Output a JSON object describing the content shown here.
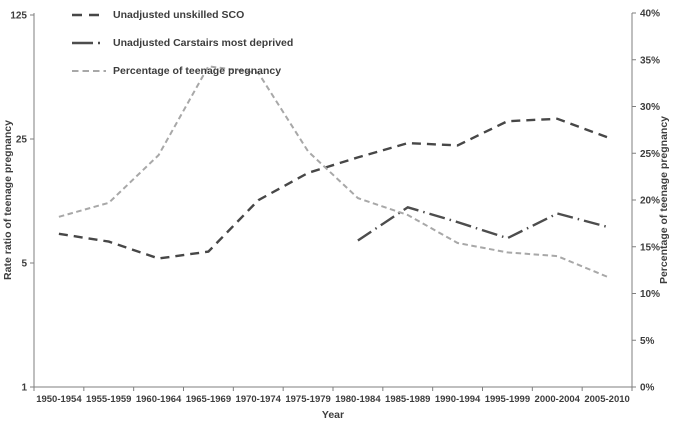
{
  "colors": {
    "dark_series": "#474747",
    "light_series": "#a8a8a8",
    "axis": "#7f7f7f",
    "text": "#3d3d3d",
    "background": "#ffffff"
  },
  "chart_data": {
    "type": "line",
    "title": "",
    "xlabel": "Year",
    "categories": [
      "1950-1954",
      "1955-1959",
      "1960-1964",
      "1965-1969",
      "1970-1974",
      "1975-1979",
      "1980-1984",
      "1985-1989",
      "1990-1994",
      "1995-1999",
      "2000-2004",
      "2005-2010"
    ],
    "left_axis": {
      "label": "Rate ratio of teenage pregnancy",
      "scale": "log-base-5",
      "tick_values": [
        1,
        5,
        25,
        125
      ],
      "tick_labels": [
        "1",
        "5",
        "25",
        "125"
      ],
      "range": [
        1,
        125
      ]
    },
    "right_axis": {
      "label": "Percentage  of teenage pregnancy",
      "scale": "linear",
      "tick_values": [
        0,
        5,
        10,
        15,
        20,
        25,
        30,
        35,
        40
      ],
      "tick_labels": [
        "0%",
        "5%",
        "10%",
        "15%",
        "20%",
        "25%",
        "30%",
        "35%",
        "40%"
      ],
      "range": [
        0,
        40
      ]
    },
    "legend_position": "top-left",
    "grid": false,
    "series": [
      {
        "name": "Unadjusted unskilled SCO",
        "axis": "left",
        "dash": "dash",
        "color": "#474747",
        "values": [
          7.3,
          6.6,
          5.3,
          5.8,
          11.3,
          16.1,
          19.7,
          23.7,
          23.0,
          31.5,
          32.5,
          25.6
        ]
      },
      {
        "name": "Unadjusted Carstairs most deprived",
        "axis": "left",
        "dash": "long-dash-dot",
        "color": "#4d4d4d",
        "values": [
          null,
          null,
          null,
          null,
          null,
          null,
          6.7,
          10.3,
          8.5,
          6.9,
          9.5,
          8.0
        ]
      },
      {
        "name": "Percentage of teenage pregnancy",
        "axis": "right",
        "dash": "short-dash",
        "color": "#a8a8a8",
        "values": [
          18.2,
          19.7,
          24.8,
          34.3,
          33.6,
          25.2,
          20.2,
          18.4,
          15.4,
          14.4,
          14.0,
          11.8
        ]
      }
    ]
  }
}
